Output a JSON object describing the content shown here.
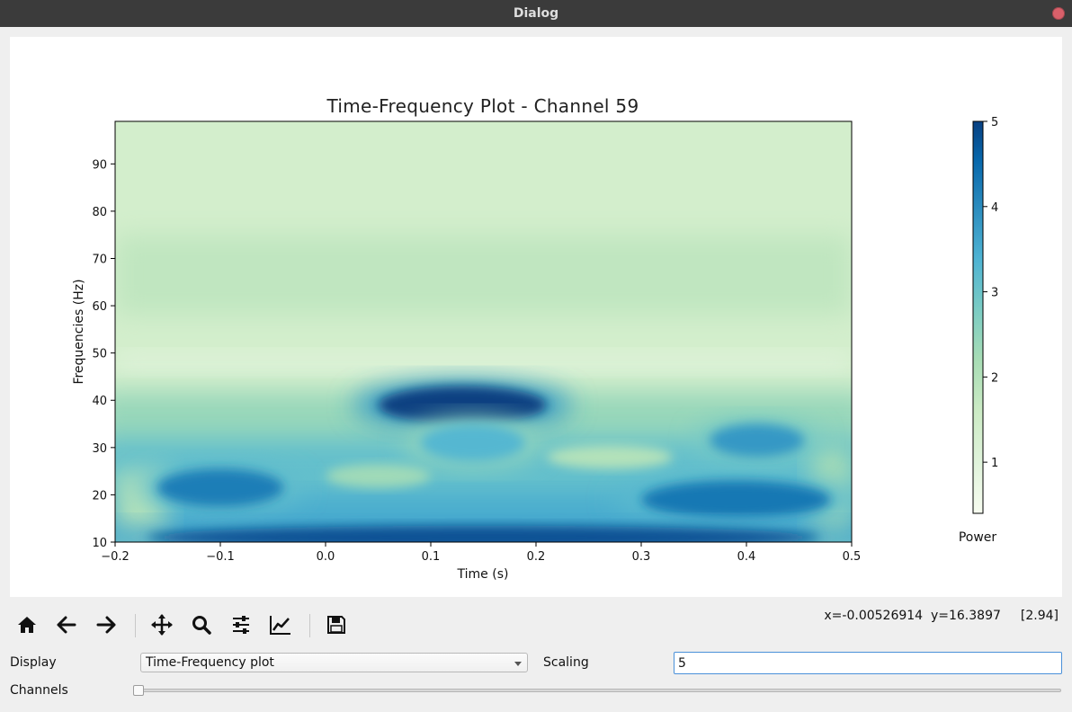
{
  "window": {
    "title": "Dialog"
  },
  "chart_data": {
    "type": "heatmap",
    "title": "Time-Frequency Plot - Channel 59",
    "xlabel": "Time (s)",
    "ylabel": "Frequencies (Hz)",
    "xlim": [
      -0.2,
      0.5
    ],
    "ylim": [
      10,
      99
    ],
    "x_ticks": [
      "−0.2",
      "−0.1",
      "0.0",
      "0.1",
      "0.2",
      "0.3",
      "0.4",
      "0.5"
    ],
    "x_tick_values": [
      -0.2,
      -0.1,
      0.0,
      0.1,
      0.2,
      0.3,
      0.4,
      0.5
    ],
    "y_ticks": [
      "10",
      "20",
      "30",
      "40",
      "50",
      "60",
      "70",
      "80",
      "90"
    ],
    "y_tick_values": [
      10,
      20,
      30,
      40,
      50,
      60,
      70,
      80,
      90
    ],
    "colorbar": {
      "label": "Power",
      "min": 0.4,
      "max": 5,
      "ticks": [
        "1",
        "2",
        "3",
        "4",
        "5"
      ],
      "tick_values": [
        1,
        2,
        3,
        4,
        5
      ],
      "colormap": "GnBu"
    },
    "blobs": [
      {
        "t": 0.13,
        "f": 39,
        "power": 5.0,
        "dt": 0.08,
        "df": 4
      },
      {
        "t": -0.1,
        "f": 21.5,
        "power": 4.2,
        "dt": 0.06,
        "df": 4
      },
      {
        "t": 0.41,
        "f": 31.5,
        "power": 3.8,
        "dt": 0.045,
        "df": 3.5
      },
      {
        "t": 0.39,
        "f": 19,
        "power": 4.3,
        "dt": 0.09,
        "df": 4
      },
      {
        "t": 0.15,
        "f": 11,
        "power": 4.8,
        "dt": 0.32,
        "df": 2.5
      },
      {
        "t": 0.14,
        "f": 31,
        "power": 3.3,
        "dt": 0.05,
        "df": 4
      }
    ]
  },
  "toolbar": {
    "items": [
      "home-icon",
      "back-arrow-icon",
      "forward-arrow-icon",
      "pan-icon",
      "zoom-icon",
      "configure-subplots-icon",
      "edit-axis-icon",
      "save-icon"
    ],
    "coords_text": "x=-0.00526914  y=16.3897",
    "value_text": "[2.94]"
  },
  "controls": {
    "display_label": "Display",
    "display_value": "Time-Frequency plot",
    "scaling_label": "Scaling",
    "scaling_value": "5",
    "channels_label": "Channels",
    "channels_position": 0
  }
}
